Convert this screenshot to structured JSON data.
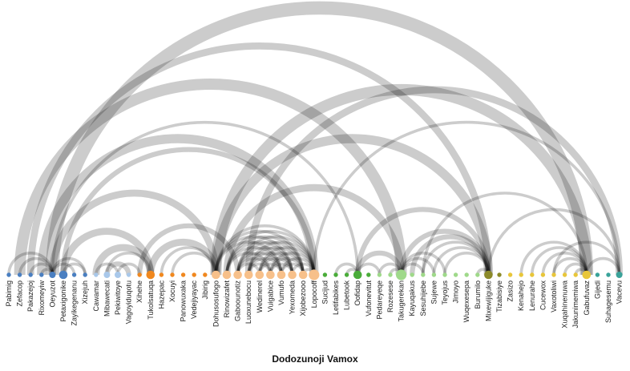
{
  "title": "Dodozunoji Vamox",
  "colors": {
    "blue": "#4a7fc1",
    "light_blue": "#a9c8ea",
    "orange": "#f0881f",
    "light_orange": "#f7c08a",
    "green": "#4aac3a",
    "light_green": "#9fd98a",
    "olive": "#8c8a2a",
    "yellow": "#e8c63a",
    "teal": "#3aa39a",
    "link": "#000000"
  },
  "nodes": [
    {
      "name": "Pabimig",
      "group": "blue",
      "size": 1
    },
    {
      "name": "Zefacop",
      "group": "blue",
      "size": 1
    },
    {
      "name": "Pakazejoj",
      "group": "blue",
      "size": 1
    },
    {
      "name": "Rixomeyiw",
      "group": "blue",
      "size": 1
    },
    {
      "name": "Oeyuzot",
      "group": "blue",
      "size": 2
    },
    {
      "name": "Petaxigonike",
      "group": "blue",
      "size": 3
    },
    {
      "name": "Zayikegenanu",
      "group": "blue",
      "size": 1
    },
    {
      "name": "Xizejuh",
      "group": "blue",
      "size": 1
    },
    {
      "name": "Cawamar",
      "group": "light_blue",
      "size": 1
    },
    {
      "name": "Mibawecati",
      "group": "light_blue",
      "size": 2
    },
    {
      "name": "Pekiwitoye",
      "group": "light_blue",
      "size": 2
    },
    {
      "name": "Vagoyiduqotu",
      "group": "light_blue",
      "size": 1
    },
    {
      "name": "Xihehe",
      "group": "orange",
      "size": 1
    },
    {
      "name": "Tukolsatuqa",
      "group": "orange",
      "size": 3
    },
    {
      "name": "Hazepac",
      "group": "orange",
      "size": 1
    },
    {
      "name": "Xocuyi",
      "group": "orange",
      "size": 1
    },
    {
      "name": "Panowuxaka",
      "group": "orange",
      "size": 1
    },
    {
      "name": "Vedejiyayac",
      "group": "orange",
      "size": 1
    },
    {
      "name": "Jibirig",
      "group": "orange",
      "size": 1
    },
    {
      "name": "Dohusosufogo",
      "group": "light_orange",
      "size": 3
    },
    {
      "name": "Rinowizafet",
      "group": "light_orange",
      "size": 3
    },
    {
      "name": "Gaboounotiz",
      "group": "light_orange",
      "size": 3
    },
    {
      "name": "Luoxunebocu",
      "group": "light_orange",
      "size": 3
    },
    {
      "name": "Wedinerel",
      "group": "light_orange",
      "size": 3
    },
    {
      "name": "Vuigabice",
      "group": "light_orange",
      "size": 3
    },
    {
      "name": "Vumufo",
      "group": "light_orange",
      "size": 3
    },
    {
      "name": "Yexomeda",
      "group": "light_orange",
      "size": 3
    },
    {
      "name": "Xijobezooo",
      "group": "light_orange",
      "size": 3
    },
    {
      "name": "Lopocoff",
      "group": "light_orange",
      "size": 4
    },
    {
      "name": "Sucijud",
      "group": "green",
      "size": 1
    },
    {
      "name": "Letifabikes",
      "group": "green",
      "size": 1
    },
    {
      "name": "Lubetook",
      "group": "green",
      "size": 1
    },
    {
      "name": "Oofidap",
      "group": "green",
      "size": 3
    },
    {
      "name": "Vufonevitut",
      "group": "green",
      "size": 1
    },
    {
      "name": "Pedareyeqe",
      "group": "light_green",
      "size": 1
    },
    {
      "name": "Rozesese",
      "group": "light_green",
      "size": 1
    },
    {
      "name": "Takugerekan",
      "group": "light_green",
      "size": 4
    },
    {
      "name": "Kayuqakus",
      "group": "light_green",
      "size": 1
    },
    {
      "name": "Sesuhijebe",
      "group": "light_green",
      "size": 1
    },
    {
      "name": "Sujewe",
      "group": "light_green",
      "size": 1
    },
    {
      "name": "Teyojus",
      "group": "light_green",
      "size": 1
    },
    {
      "name": "Jimoyo",
      "group": "light_green",
      "size": 1
    },
    {
      "name": "Wuqexesepa",
      "group": "light_green",
      "size": 1
    },
    {
      "name": "Burumilo",
      "group": "light_green",
      "size": 1
    },
    {
      "name": "Mixewijiguke",
      "group": "olive",
      "size": 3
    },
    {
      "name": "Tizabisiye",
      "group": "olive",
      "size": 1
    },
    {
      "name": "Zasizo",
      "group": "yellow",
      "size": 1
    },
    {
      "name": "Kenahejo",
      "group": "yellow",
      "size": 1
    },
    {
      "name": "Lenurahe",
      "group": "yellow",
      "size": 1
    },
    {
      "name": "Cucewox",
      "group": "yellow",
      "size": 1
    },
    {
      "name": "Vaxotoliwi",
      "group": "yellow",
      "size": 1
    },
    {
      "name": "Xuqahinenuwa",
      "group": "yellow",
      "size": 1
    },
    {
      "name": "Jakunimemiwa",
      "group": "yellow",
      "size": 1
    },
    {
      "name": "Gabufuvaz",
      "group": "yellow",
      "size": 3
    },
    {
      "name": "Gijedi",
      "group": "teal",
      "size": 1
    },
    {
      "name": "Suhagesemu",
      "group": "teal",
      "size": 1
    },
    {
      "name": "Vacevu",
      "group": "teal",
      "size": 2
    }
  ],
  "links": [
    {
      "source": 4,
      "target": 53,
      "value": 6
    },
    {
      "source": 1,
      "target": 36,
      "value": 5
    },
    {
      "source": 2,
      "target": 44,
      "value": 3
    },
    {
      "source": 3,
      "target": 28,
      "value": 4
    },
    {
      "source": 4,
      "target": 32,
      "value": 1
    },
    {
      "source": 19,
      "target": 53,
      "value": 5
    },
    {
      "source": 22,
      "target": 56,
      "value": 3
    },
    {
      "source": 28,
      "target": 56,
      "value": 1
    },
    {
      "source": 19,
      "target": 44,
      "value": 4
    },
    {
      "source": 20,
      "target": 36,
      "value": 3
    },
    {
      "source": 4,
      "target": 19,
      "value": 3
    },
    {
      "source": 5,
      "target": 28,
      "value": 2
    },
    {
      "source": 5,
      "target": 13,
      "value": 3
    },
    {
      "source": 8,
      "target": 13,
      "value": 3
    },
    {
      "source": 9,
      "target": 11,
      "value": 2
    },
    {
      "source": 10,
      "target": 12,
      "value": 1
    },
    {
      "source": 8,
      "target": 10,
      "value": 1
    },
    {
      "source": 9,
      "target": 13,
      "value": 1
    },
    {
      "source": 12,
      "target": 21,
      "value": 2
    },
    {
      "source": 13,
      "target": 19,
      "value": 3
    },
    {
      "source": 14,
      "target": 19,
      "value": 1
    },
    {
      "source": 15,
      "target": 19,
      "value": 1
    },
    {
      "source": 0,
      "target": 4,
      "value": 1
    },
    {
      "source": 1,
      "target": 4,
      "value": 1
    },
    {
      "source": 2,
      "target": 4,
      "value": 1
    },
    {
      "source": 3,
      "target": 4,
      "value": 1
    },
    {
      "source": 4,
      "target": 6,
      "value": 1
    },
    {
      "source": 4,
      "target": 7,
      "value": 1
    },
    {
      "source": 5,
      "target": 7,
      "value": 1
    },
    {
      "source": 19,
      "target": 28,
      "value": 1
    },
    {
      "source": 19,
      "target": 27,
      "value": 1
    },
    {
      "source": 19,
      "target": 26,
      "value": 1
    },
    {
      "source": 19,
      "target": 25,
      "value": 1
    },
    {
      "source": 20,
      "target": 28,
      "value": 1
    },
    {
      "source": 20,
      "target": 27,
      "value": 1
    },
    {
      "source": 20,
      "target": 26,
      "value": 1
    },
    {
      "source": 20,
      "target": 25,
      "value": 1
    },
    {
      "source": 20,
      "target": 24,
      "value": 1
    },
    {
      "source": 21,
      "target": 28,
      "value": 1
    },
    {
      "source": 21,
      "target": 27,
      "value": 1
    },
    {
      "source": 21,
      "target": 26,
      "value": 1
    },
    {
      "source": 21,
      "target": 25,
      "value": 1
    },
    {
      "source": 21,
      "target": 24,
      "value": 1
    },
    {
      "source": 21,
      "target": 23,
      "value": 1
    },
    {
      "source": 22,
      "target": 28,
      "value": 1
    },
    {
      "source": 22,
      "target": 27,
      "value": 1
    },
    {
      "source": 22,
      "target": 26,
      "value": 1
    },
    {
      "source": 22,
      "target": 25,
      "value": 1
    },
    {
      "source": 22,
      "target": 24,
      "value": 1
    },
    {
      "source": 23,
      "target": 28,
      "value": 1
    },
    {
      "source": 23,
      "target": 27,
      "value": 1
    },
    {
      "source": 23,
      "target": 26,
      "value": 1
    },
    {
      "source": 23,
      "target": 25,
      "value": 1
    },
    {
      "source": 24,
      "target": 28,
      "value": 1
    },
    {
      "source": 24,
      "target": 27,
      "value": 1
    },
    {
      "source": 24,
      "target": 26,
      "value": 1
    },
    {
      "source": 25,
      "target": 28,
      "value": 1
    },
    {
      "source": 25,
      "target": 27,
      "value": 1
    },
    {
      "source": 26,
      "target": 28,
      "value": 1
    },
    {
      "source": 27,
      "target": 28,
      "value": 1
    },
    {
      "source": 32,
      "target": 36,
      "value": 2
    },
    {
      "source": 30,
      "target": 32,
      "value": 1
    },
    {
      "source": 31,
      "target": 32,
      "value": 1
    },
    {
      "source": 32,
      "target": 34,
      "value": 1
    },
    {
      "source": 32,
      "target": 44,
      "value": 2
    },
    {
      "source": 36,
      "target": 44,
      "value": 2
    },
    {
      "source": 34,
      "target": 36,
      "value": 1
    },
    {
      "source": 35,
      "target": 36,
      "value": 1
    },
    {
      "source": 36,
      "target": 38,
      "value": 1
    },
    {
      "source": 36,
      "target": 39,
      "value": 1
    },
    {
      "source": 36,
      "target": 40,
      "value": 1
    },
    {
      "source": 37,
      "target": 44,
      "value": 2
    },
    {
      "source": 38,
      "target": 44,
      "value": 1
    },
    {
      "source": 39,
      "target": 44,
      "value": 1
    },
    {
      "source": 40,
      "target": 44,
      "value": 1
    },
    {
      "source": 43,
      "target": 44,
      "value": 1
    },
    {
      "source": 44,
      "target": 56,
      "value": 1
    },
    {
      "source": 38,
      "target": 53,
      "value": 1
    },
    {
      "source": 47,
      "target": 53,
      "value": 1
    },
    {
      "source": 48,
      "target": 53,
      "value": 1
    },
    {
      "source": 49,
      "target": 53,
      "value": 1
    },
    {
      "source": 50,
      "target": 53,
      "value": 1
    },
    {
      "source": 51,
      "target": 53,
      "value": 1
    },
    {
      "source": 52,
      "target": 53,
      "value": 1
    },
    {
      "source": 50,
      "target": 56,
      "value": 1
    },
    {
      "source": 53,
      "target": 56,
      "value": 1
    }
  ]
}
